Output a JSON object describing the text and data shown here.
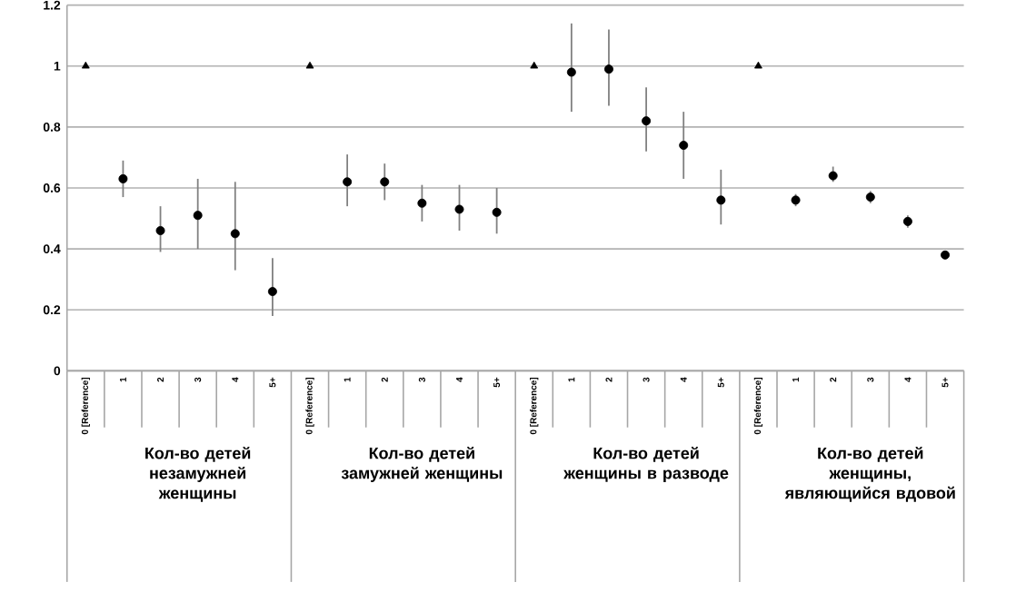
{
  "chart_data": {
    "type": "scatter",
    "categories": [
      "0 [Reference]",
      "1",
      "2",
      "3",
      "4",
      "5+",
      "0 [Reference]",
      "1",
      "2",
      "3",
      "4",
      "5+",
      "0 [Reference]",
      "1",
      "2",
      "3",
      "4",
      "5+",
      "0 [Reference]",
      "1",
      "2",
      "3",
      "4",
      "5+"
    ],
    "series": [
      {
        "color": "#000000",
        "marker": "triangle",
        "values": [
          1,
          null,
          null,
          null,
          null,
          null,
          1,
          null,
          null,
          null,
          null,
          null,
          1,
          null,
          null,
          null,
          null,
          null,
          1,
          null,
          null,
          null,
          null,
          null
        ]
      },
      {
        "color": "#000000",
        "marker": "circle",
        "values": [
          null,
          0.63,
          0.46,
          0.51,
          0.45,
          0.26,
          null,
          0.62,
          0.62,
          0.55,
          0.53,
          0.52,
          null,
          0.98,
          0.99,
          0.82,
          0.74,
          0.56,
          null,
          0.56,
          0.64,
          0.57,
          0.49,
          0.38
        ],
        "errors": [
          null,
          [
            0.57,
            0.69
          ],
          [
            0.39,
            0.54
          ],
          [
            0.4,
            0.63
          ],
          [
            0.33,
            0.62
          ],
          [
            0.18,
            0.37
          ],
          null,
          [
            0.54,
            0.71
          ],
          [
            0.56,
            0.68
          ],
          [
            0.49,
            0.61
          ],
          [
            0.46,
            0.61
          ],
          [
            0.45,
            0.6
          ],
          null,
          [
            0.85,
            1.14
          ],
          [
            0.87,
            1.12
          ],
          [
            0.72,
            0.93
          ],
          [
            0.63,
            0.85
          ],
          [
            0.48,
            0.66
          ],
          null,
          [
            0.54,
            0.58
          ],
          [
            0.62,
            0.67
          ],
          [
            0.55,
            0.59
          ],
          [
            0.47,
            0.51
          ],
          [
            0.37,
            0.39
          ]
        ]
      }
    ],
    "annotations": [
      "Кол-во детей незамужней женщины",
      "Кол-во детей замужней женщины",
      "Кол-во детей женщины в разводе",
      "Кол-во детей женщины, являющийся вдовой"
    ],
    "ylim": [
      0,
      1.2
    ],
    "yticks": [
      0,
      0.2,
      0.4,
      0.6,
      0.8,
      1,
      1.2
    ],
    "grid": "y"
  }
}
